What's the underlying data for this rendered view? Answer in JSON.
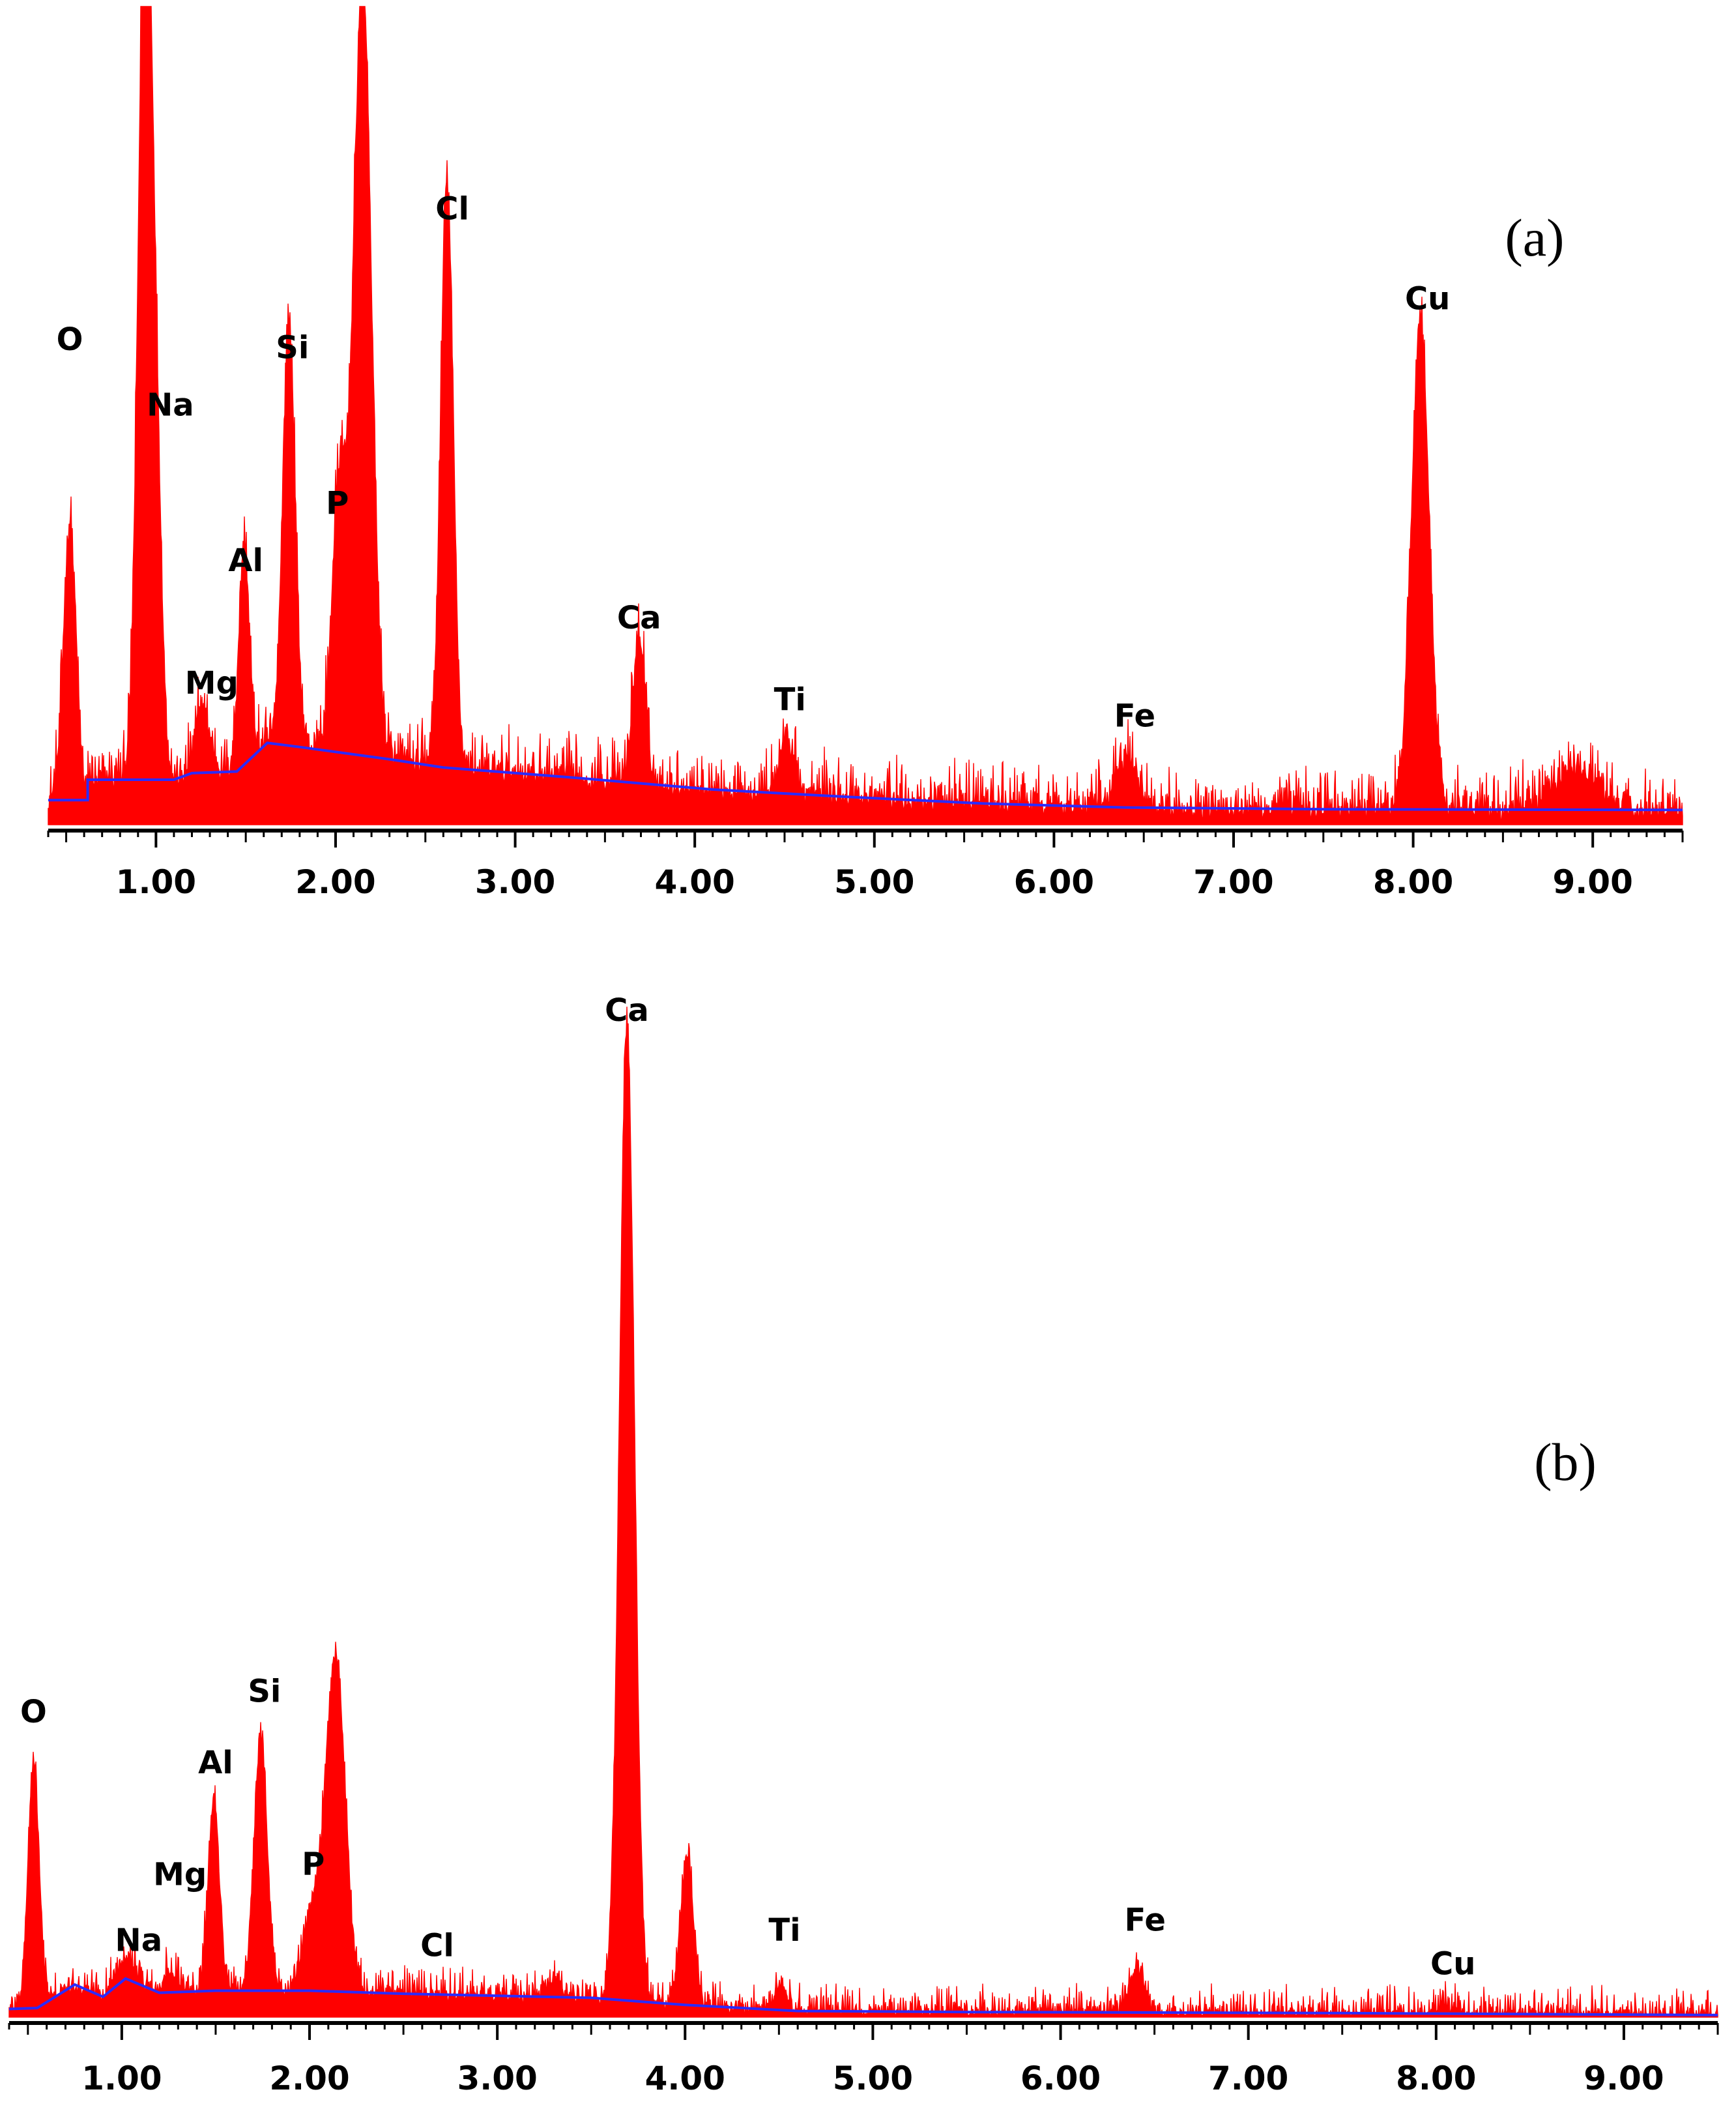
{
  "chart_data": [
    {
      "panel_label": "(a)",
      "type": "area",
      "xlim": [
        0.4,
        9.5
      ],
      "ylim": [
        0,
        100
      ],
      "x_ticks": [
        "1.00",
        "2.00",
        "3.00",
        "4.00",
        "5.00",
        "6.00",
        "7.00",
        "8.00",
        "9.00"
      ],
      "noise_level": 3,
      "peaks": [
        {
          "x": 0.52,
          "height": 34,
          "width": 0.035
        },
        {
          "x": 0.9,
          "height": 26,
          "width": 0.03
        },
        {
          "x": 0.94,
          "height": 88,
          "width": 0.03
        },
        {
          "x": 0.99,
          "height": 52,
          "width": 0.035
        },
        {
          "x": 1.26,
          "height": 8,
          "width": 0.04
        },
        {
          "x": 1.49,
          "height": 27,
          "width": 0.03
        },
        {
          "x": 1.74,
          "height": 52,
          "width": 0.035
        },
        {
          "x": 2.02,
          "height": 32,
          "width": 0.04
        },
        {
          "x": 2.15,
          "height": 96,
          "width": 0.05
        },
        {
          "x": 2.62,
          "height": 72,
          "width": 0.035
        },
        {
          "x": 3.69,
          "height": 18,
          "width": 0.035
        },
        {
          "x": 4.51,
          "height": 7,
          "width": 0.04
        },
        {
          "x": 6.4,
          "height": 6,
          "width": 0.06
        },
        {
          "x": 8.04,
          "height": 60,
          "width": 0.05
        },
        {
          "x": 8.9,
          "height": 5,
          "width": 0.12
        }
      ],
      "background": [
        [
          0.4,
          3
        ],
        [
          0.62,
          3
        ],
        [
          0.62,
          5.5
        ],
        [
          1.1,
          5.5
        ],
        [
          1.2,
          6.3
        ],
        [
          1.45,
          6.5
        ],
        [
          1.62,
          10
        ],
        [
          1.8,
          9.5
        ],
        [
          2.3,
          8
        ],
        [
          2.6,
          7
        ],
        [
          3.3,
          5.8
        ],
        [
          4.1,
          4.3
        ],
        [
          4.85,
          3.4
        ],
        [
          5.6,
          2.6
        ],
        [
          6.4,
          2.1
        ],
        [
          7.5,
          1.9
        ],
        [
          9.5,
          1.8
        ]
      ],
      "annotations": [
        {
          "text": "O",
          "x": 0.52,
          "y": 58
        },
        {
          "text": "Na",
          "x": 1.08,
          "y": 50
        },
        {
          "text": "Mg",
          "x": 1.31,
          "y": 16
        },
        {
          "text": "Al",
          "x": 1.5,
          "y": 31
        },
        {
          "text": "Si",
          "x": 1.76,
          "y": 57
        },
        {
          "text": "P",
          "x": 2.01,
          "y": 38
        },
        {
          "text": "Cl",
          "x": 2.65,
          "y": 74
        },
        {
          "text": "Ca",
          "x": 3.69,
          "y": 24
        },
        {
          "text": "Ti",
          "x": 4.53,
          "y": 14
        },
        {
          "text": "Fe",
          "x": 6.45,
          "y": 12
        },
        {
          "text": "Cu",
          "x": 8.08,
          "y": 63
        }
      ]
    },
    {
      "panel_label": "(b)",
      "type": "area",
      "xlim": [
        0.4,
        9.5
      ],
      "ylim": [
        0,
        100
      ],
      "x_ticks": [
        "1.00",
        "2.00",
        "3.00",
        "4.00",
        "5.00",
        "6.00",
        "7.00",
        "8.00",
        "9.00"
      ],
      "noise_level": 1.5,
      "peaks": [
        {
          "x": 0.53,
          "height": 24,
          "width": 0.03
        },
        {
          "x": 1.02,
          "height": 2.5,
          "width": 0.05
        },
        {
          "x": 1.26,
          "height": 2,
          "width": 0.04
        },
        {
          "x": 1.49,
          "height": 19,
          "width": 0.03
        },
        {
          "x": 1.74,
          "height": 25,
          "width": 0.035
        },
        {
          "x": 2.02,
          "height": 8,
          "width": 0.05
        },
        {
          "x": 2.14,
          "height": 33,
          "width": 0.05
        },
        {
          "x": 3.3,
          "height": 1.5,
          "width": 0.05
        },
        {
          "x": 3.69,
          "height": 96,
          "width": 0.04
        },
        {
          "x": 4.01,
          "height": 14.5,
          "width": 0.035
        },
        {
          "x": 4.51,
          "height": 3,
          "width": 0.03
        },
        {
          "x": 6.41,
          "height": 4.5,
          "width": 0.04
        },
        {
          "x": 8.05,
          "height": 0.8,
          "width": 0.04
        }
      ],
      "background": [
        [
          0.4,
          0.8
        ],
        [
          0.55,
          0.9
        ],
        [
          0.75,
          3.2
        ],
        [
          0.9,
          2.0
        ],
        [
          1.02,
          3.8
        ],
        [
          1.2,
          2.4
        ],
        [
          1.5,
          2.6
        ],
        [
          2.0,
          2.6
        ],
        [
          2.5,
          2.3
        ],
        [
          3.0,
          2.1
        ],
        [
          3.5,
          1.9
        ],
        [
          4.0,
          1.2
        ],
        [
          4.6,
          0.6
        ],
        [
          5.5,
          0.5
        ],
        [
          7.5,
          0.4
        ],
        [
          9.5,
          0.2
        ]
      ],
      "annotations": [
        {
          "text": "O",
          "x": 0.53,
          "y": 29
        },
        {
          "text": "Na",
          "x": 1.09,
          "y": 6.5
        },
        {
          "text": "Mg",
          "x": 1.31,
          "y": 13
        },
        {
          "text": "Al",
          "x": 1.5,
          "y": 24
        },
        {
          "text": "Si",
          "x": 1.76,
          "y": 31
        },
        {
          "text": "P",
          "x": 2.02,
          "y": 14
        },
        {
          "text": "Cl",
          "x": 2.68,
          "y": 6
        },
        {
          "text": "Ca",
          "x": 3.69,
          "y": 98
        },
        {
          "text": "Ti",
          "x": 4.53,
          "y": 7.5
        },
        {
          "text": "Fe",
          "x": 6.45,
          "y": 8.5
        },
        {
          "text": "Cu",
          "x": 8.09,
          "y": 4.2
        }
      ]
    }
  ]
}
